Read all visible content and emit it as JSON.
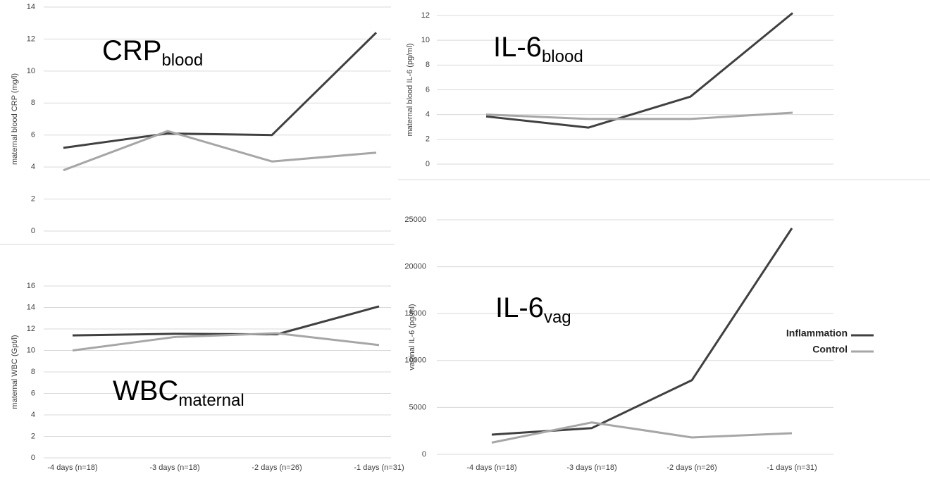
{
  "chart_data": [
    {
      "type": "line",
      "title": "CRP",
      "title_subscript": "blood",
      "y_label": "maternal blood CRP (mg/l)",
      "ylim": [
        0,
        14
      ],
      "yticks": [
        0,
        2,
        4,
        6,
        8,
        10,
        12,
        14
      ],
      "grid": true,
      "series": [
        {
          "name": "Inflammation",
          "color": "#404040",
          "values": [
            5.2,
            6.1,
            6.0,
            12.4
          ]
        },
        {
          "name": "Control",
          "color": "#a6a6a6",
          "values": [
            3.8,
            6.25,
            4.35,
            4.9
          ]
        }
      ]
    },
    {
      "type": "line",
      "title": "IL-6",
      "title_subscript": "blood",
      "y_label": "maternal blood IL-6 (pg/ml)",
      "ylim": [
        0,
        12
      ],
      "yticks": [
        0,
        2,
        4,
        6,
        8,
        10,
        12
      ],
      "grid": true,
      "series": [
        {
          "name": "Inflammation",
          "color": "#404040",
          "values": [
            3.85,
            2.95,
            5.45,
            12.2
          ]
        },
        {
          "name": "Control",
          "color": "#a6a6a6",
          "values": [
            4.0,
            3.65,
            3.65,
            4.15
          ]
        }
      ]
    },
    {
      "type": "line",
      "title": "WBC",
      "title_subscript": "maternal",
      "y_label": "maternal WBC (Gpt/l)",
      "categories": [
        "-4 days (n=18)",
        "-3 days (n=18)",
        "-2 days (n=26)",
        "-1 days (n=31)"
      ],
      "ylim": [
        0,
        16
      ],
      "yticks": [
        0,
        2,
        4,
        6,
        8,
        10,
        12,
        14,
        16
      ],
      "grid": true,
      "series": [
        {
          "name": "Inflammation",
          "color": "#404040",
          "values": [
            11.4,
            11.55,
            11.5,
            14.1
          ]
        },
        {
          "name": "Control",
          "color": "#a6a6a6",
          "values": [
            10.0,
            11.25,
            11.6,
            10.5
          ]
        }
      ]
    },
    {
      "type": "line",
      "title": "IL-6",
      "title_subscript": "vag",
      "y_label": "vaginal IL-6 (pg/ml)",
      "categories": [
        "-4 days (n=18)",
        "-3 days (n=18)",
        "-2 days (n=26)",
        "-1 days (n=31)"
      ],
      "ylim": [
        0,
        25000
      ],
      "yticks": [
        0,
        5000,
        10000,
        15000,
        20000,
        25000
      ],
      "grid": true,
      "legend": "right",
      "series": [
        {
          "name": "Inflammation",
          "color": "#404040",
          "values": [
            2100,
            2800,
            7900,
            24100
          ]
        },
        {
          "name": "Control",
          "color": "#a6a6a6",
          "values": [
            1250,
            3400,
            1800,
            2250
          ]
        }
      ]
    }
  ]
}
